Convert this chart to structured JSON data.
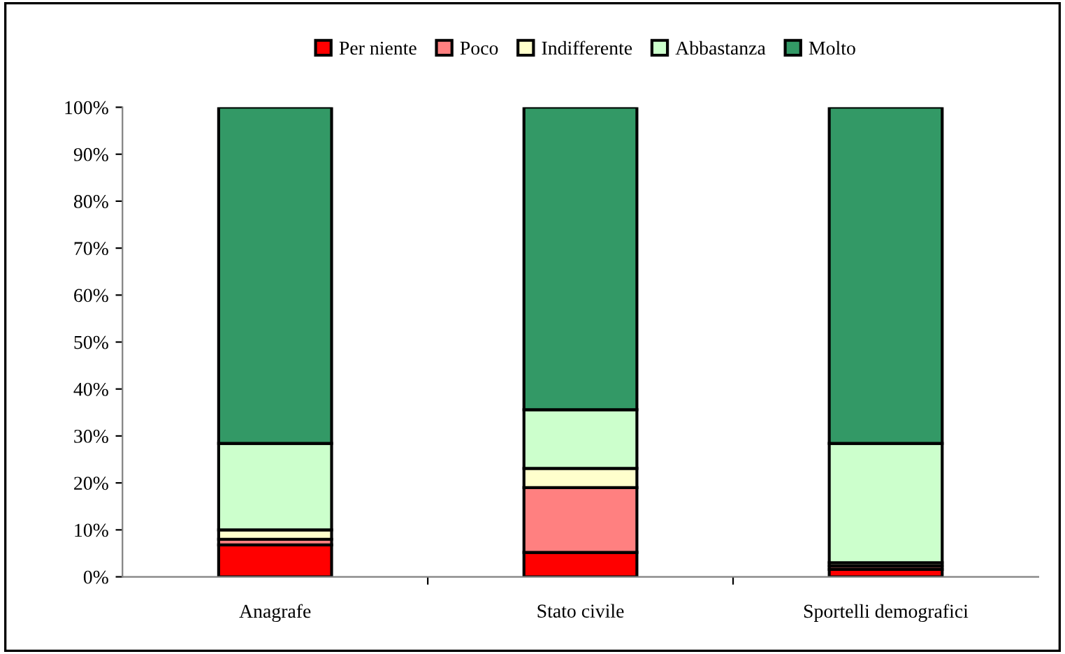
{
  "chart_data": {
    "type": "bar",
    "stacked": true,
    "categories": [
      "Anagrafe",
      "Stato civile",
      "Sportelli demografici"
    ],
    "series": [
      {
        "name": "Per niente",
        "color": "#ff0000",
        "values": [
          6.8,
          5.2,
          1.6
        ]
      },
      {
        "name": "Poco",
        "color": "#ff8080",
        "values": [
          1.2,
          13.8,
          0.7
        ]
      },
      {
        "name": "Indifferente",
        "color": "#ffffcc",
        "values": [
          2.0,
          4.1,
          0.7
        ]
      },
      {
        "name": "Abbastanza",
        "color": "#ccffcc",
        "values": [
          18.4,
          12.5,
          25.4
        ]
      },
      {
        "name": "Molto",
        "color": "#339966",
        "values": [
          71.6,
          64.4,
          71.6
        ]
      }
    ],
    "ylim": [
      0,
      100
    ],
    "yticks": [
      {
        "value": 0,
        "label": "0%"
      },
      {
        "value": 10,
        "label": "10%"
      },
      {
        "value": 20,
        "label": "20%"
      },
      {
        "value": 30,
        "label": "30%"
      },
      {
        "value": 40,
        "label": "40%"
      },
      {
        "value": 50,
        "label": "50%"
      },
      {
        "value": 60,
        "label": "60%"
      },
      {
        "value": 70,
        "label": "70%"
      },
      {
        "value": 80,
        "label": "80%"
      },
      {
        "value": 90,
        "label": "90%"
      },
      {
        "value": 100,
        "label": "100%"
      }
    ],
    "grid": false,
    "legend": "top"
  }
}
